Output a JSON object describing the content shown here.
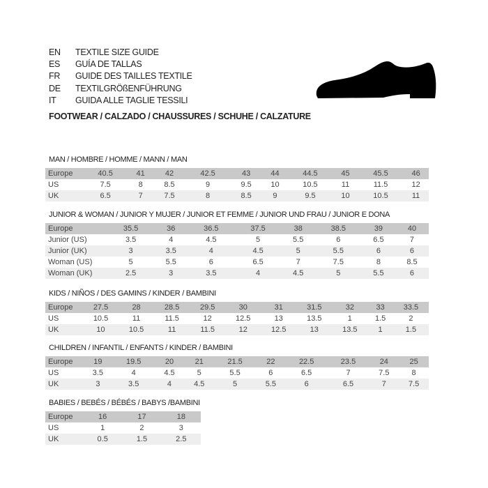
{
  "guide_titles": [
    {
      "code": "EN",
      "title": "TEXTILE SIZE GUIDE"
    },
    {
      "code": "ES",
      "title": "GUÍA DE TALLAS"
    },
    {
      "code": "FR",
      "title": "GUIDE DES TAILLES TEXTILE"
    },
    {
      "code": "DE",
      "title": "TEXTILGRÖßENFÜHRUNG"
    },
    {
      "code": "IT",
      "title": "GUIDA ALLE TAGLIE TESSILI"
    }
  ],
  "footwear_heading": "FOOTWEAR / CALZADO / CHAUSSURES / SCHUHE / CALZATURE",
  "icon": "shoe-icon",
  "colors": {
    "header_row": "#c9c9c9",
    "alt_row": "#eeeeee"
  },
  "sections": [
    {
      "title": "MAN / HOMBRE / HOMME / MANN / MAN",
      "rows": [
        {
          "label": "Europe",
          "values": [
            "40.5",
            "41",
            "42",
            "42.5",
            "43",
            "44",
            "44.5",
            "45",
            "45.5",
            "46"
          ]
        },
        {
          "label": "US",
          "values": [
            "7.5",
            "8",
            "8.5",
            "9",
            "9.5",
            "10",
            "10.5",
            "11",
            "11.5",
            "12"
          ]
        },
        {
          "label": "UK",
          "values": [
            "6.5",
            "7",
            "7.5",
            "8",
            "8.5",
            "9",
            "9.5",
            "10",
            "10.5",
            "11"
          ]
        }
      ]
    },
    {
      "title": "JUNIOR & WOMAN / JUNIOR Y MUJER / JUNIOR ET FEMME / JUNIOR UND FRAU / JUNIOR E DONA",
      "rows": [
        {
          "label": "Europe",
          "values": [
            "35.5",
            "36",
            "36.5",
            "37.5",
            "38",
            "38.5",
            "39",
            "40"
          ]
        },
        {
          "label": "Junior (US)",
          "values": [
            "3.5",
            "4",
            "4.5",
            "5",
            "5.5",
            "6",
            "6.5",
            "7"
          ]
        },
        {
          "label": "Junior (UK)",
          "values": [
            "3",
            "3.5",
            "4",
            "4.5",
            "5",
            "5.5",
            "6",
            "6"
          ]
        },
        {
          "label": "Woman (US)",
          "values": [
            "5",
            "5.5",
            "6",
            "6.5",
            "7",
            "7.5",
            "8",
            "8.5"
          ]
        },
        {
          "label": "Woman (UK)",
          "values": [
            "2.5",
            "3",
            "3.5",
            "4",
            "4.5",
            "5",
            "5.5",
            "6"
          ]
        }
      ]
    },
    {
      "title": "KIDS / NIÑOS / DES GAMINS / KINDER / BAMBINI",
      "rows": [
        {
          "label": "Europe",
          "values": [
            "27.5",
            "28",
            "28.5",
            "29.5",
            "30",
            "31",
            "31.5",
            "32",
            "33",
            "33.5"
          ]
        },
        {
          "label": "US",
          "values": [
            "10.5",
            "11",
            "11.5",
            "12",
            "12.5",
            "13",
            "13.5",
            "1",
            "1.5",
            "2"
          ]
        },
        {
          "label": "UK",
          "values": [
            "10",
            "10.5",
            "11",
            "11.5",
            "12",
            "12.5",
            "13",
            "13.5",
            "1",
            "1.5"
          ]
        }
      ]
    },
    {
      "title": "CHILDREN / INFANTIL / ENFANTS / KINDER / BAMBINI",
      "rows": [
        {
          "label": "Europe",
          "values": [
            "19",
            "19.5",
            "20",
            "21",
            "21.5",
            "22",
            "22.5",
            "23.5",
            "24",
            "25"
          ]
        },
        {
          "label": "US",
          "values": [
            "3.5",
            "4",
            "4.5",
            "5",
            "5.5",
            "6",
            "6.5",
            "7",
            "7.5",
            "8"
          ]
        },
        {
          "label": "UK",
          "values": [
            "3",
            "3.5",
            "4",
            "4.5",
            "5",
            "5.5",
            "6",
            "6.5",
            "7",
            "7.5"
          ]
        }
      ]
    },
    {
      "title": "BABIES  / BEBÉS / BÉBÉS / BABYS /BAMBINI",
      "rows": [
        {
          "label": "Europe",
          "values": [
            "16",
            "17",
            "18"
          ]
        },
        {
          "label": "US",
          "values": [
            "1",
            "2",
            "3"
          ]
        },
        {
          "label": "UK",
          "values": [
            "0.5",
            "1.5",
            "2.5"
          ]
        }
      ]
    }
  ]
}
